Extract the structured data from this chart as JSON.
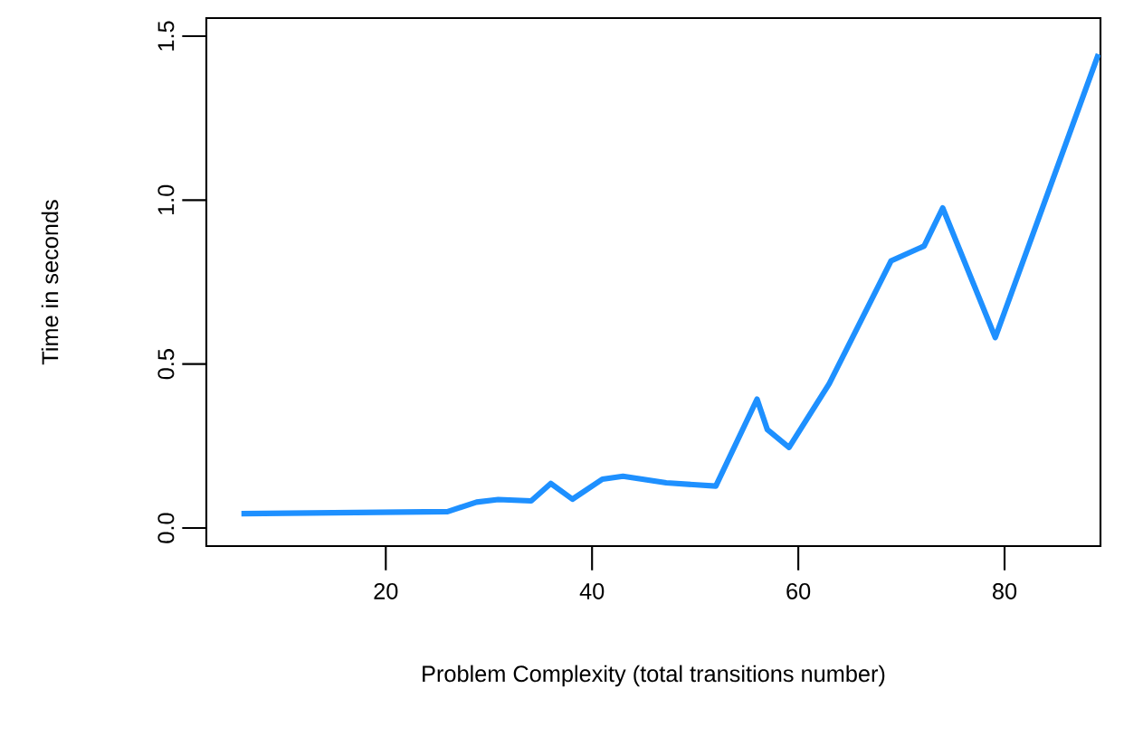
{
  "chart_data": {
    "type": "line",
    "xlabel": "Problem Complexity (total transitions number)",
    "ylabel": "Time in seconds",
    "x": [
      6,
      26,
      28.8,
      30.9,
      34.1,
      36,
      38.1,
      41,
      43,
      47.2,
      52,
      56,
      57,
      59.1,
      63,
      69,
      72.2,
      74,
      79.1,
      89.1
    ],
    "series": [
      {
        "color": "#1e90ff",
        "values": [
          0.044,
          0.05,
          0.079,
          0.087,
          0.083,
          0.136,
          0.088,
          0.149,
          0.158,
          0.138,
          0.128,
          0.393,
          0.3,
          0.246,
          0.44,
          0.815,
          0.86,
          0.976,
          0.581,
          1.445
        ]
      }
    ],
    "xlim": [
      2.6,
      89.3
    ],
    "ylim": [
      -0.055,
      1.555
    ],
    "xticks": [
      20,
      40,
      60,
      80
    ],
    "yticks": [
      {
        "value": 0,
        "label": "0.0"
      },
      {
        "value": 0.5,
        "label": "0.5"
      },
      {
        "value": 1,
        "label": "1.0"
      },
      {
        "value": 1.5,
        "label": "1.5"
      }
    ],
    "marker": "none",
    "line_style": "solid"
  }
}
